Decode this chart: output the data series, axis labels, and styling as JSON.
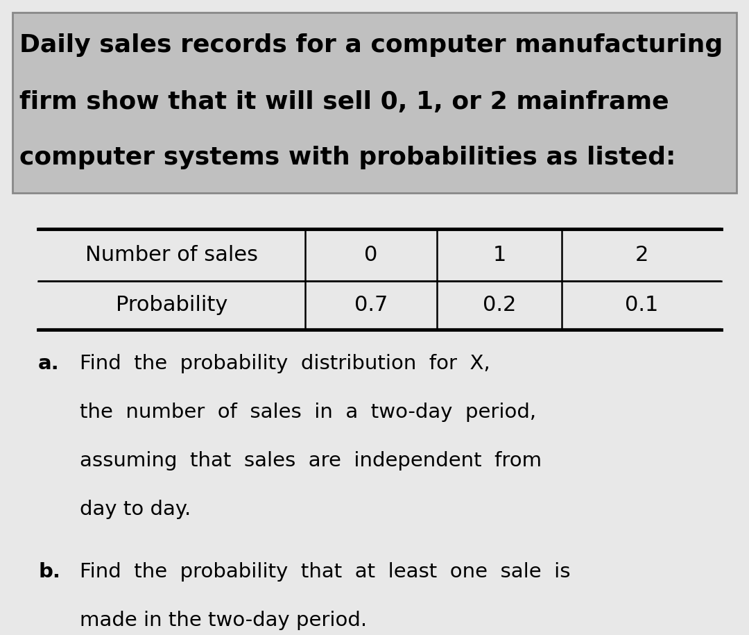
{
  "bg_color": "#e8e8e8",
  "header_bg": "#c0c0c0",
  "body_bg": "#e8e8e8",
  "title_line1": "Daily sales records for a computer manufacturing",
  "title_line2": "firm show that it will sell 0, 1, or 2 mainframe",
  "title_line3": "computer systems with probabilities as listed:",
  "table_row1_label": "Number of sales",
  "table_row2_label": "Probability",
  "table_row1_vals": [
    "0",
    "1",
    "2"
  ],
  "table_row2_vals": [
    "0.7",
    "0.2",
    "0.1"
  ],
  "part_a_label": "a.",
  "part_a_lines": [
    "Find  the  probability  distribution  for  X,",
    "the  number  of  sales  in  a  two-day  period,",
    "assuming  that  sales  are  independent  from",
    "day to day."
  ],
  "part_b_label": "b.",
  "part_b_lines": [
    "Find  the  probability  that  at  least  one  sale  is",
    "made in the two-day period."
  ],
  "title_fontsize": 26,
  "table_fontsize": 22,
  "body_fontsize": 21
}
